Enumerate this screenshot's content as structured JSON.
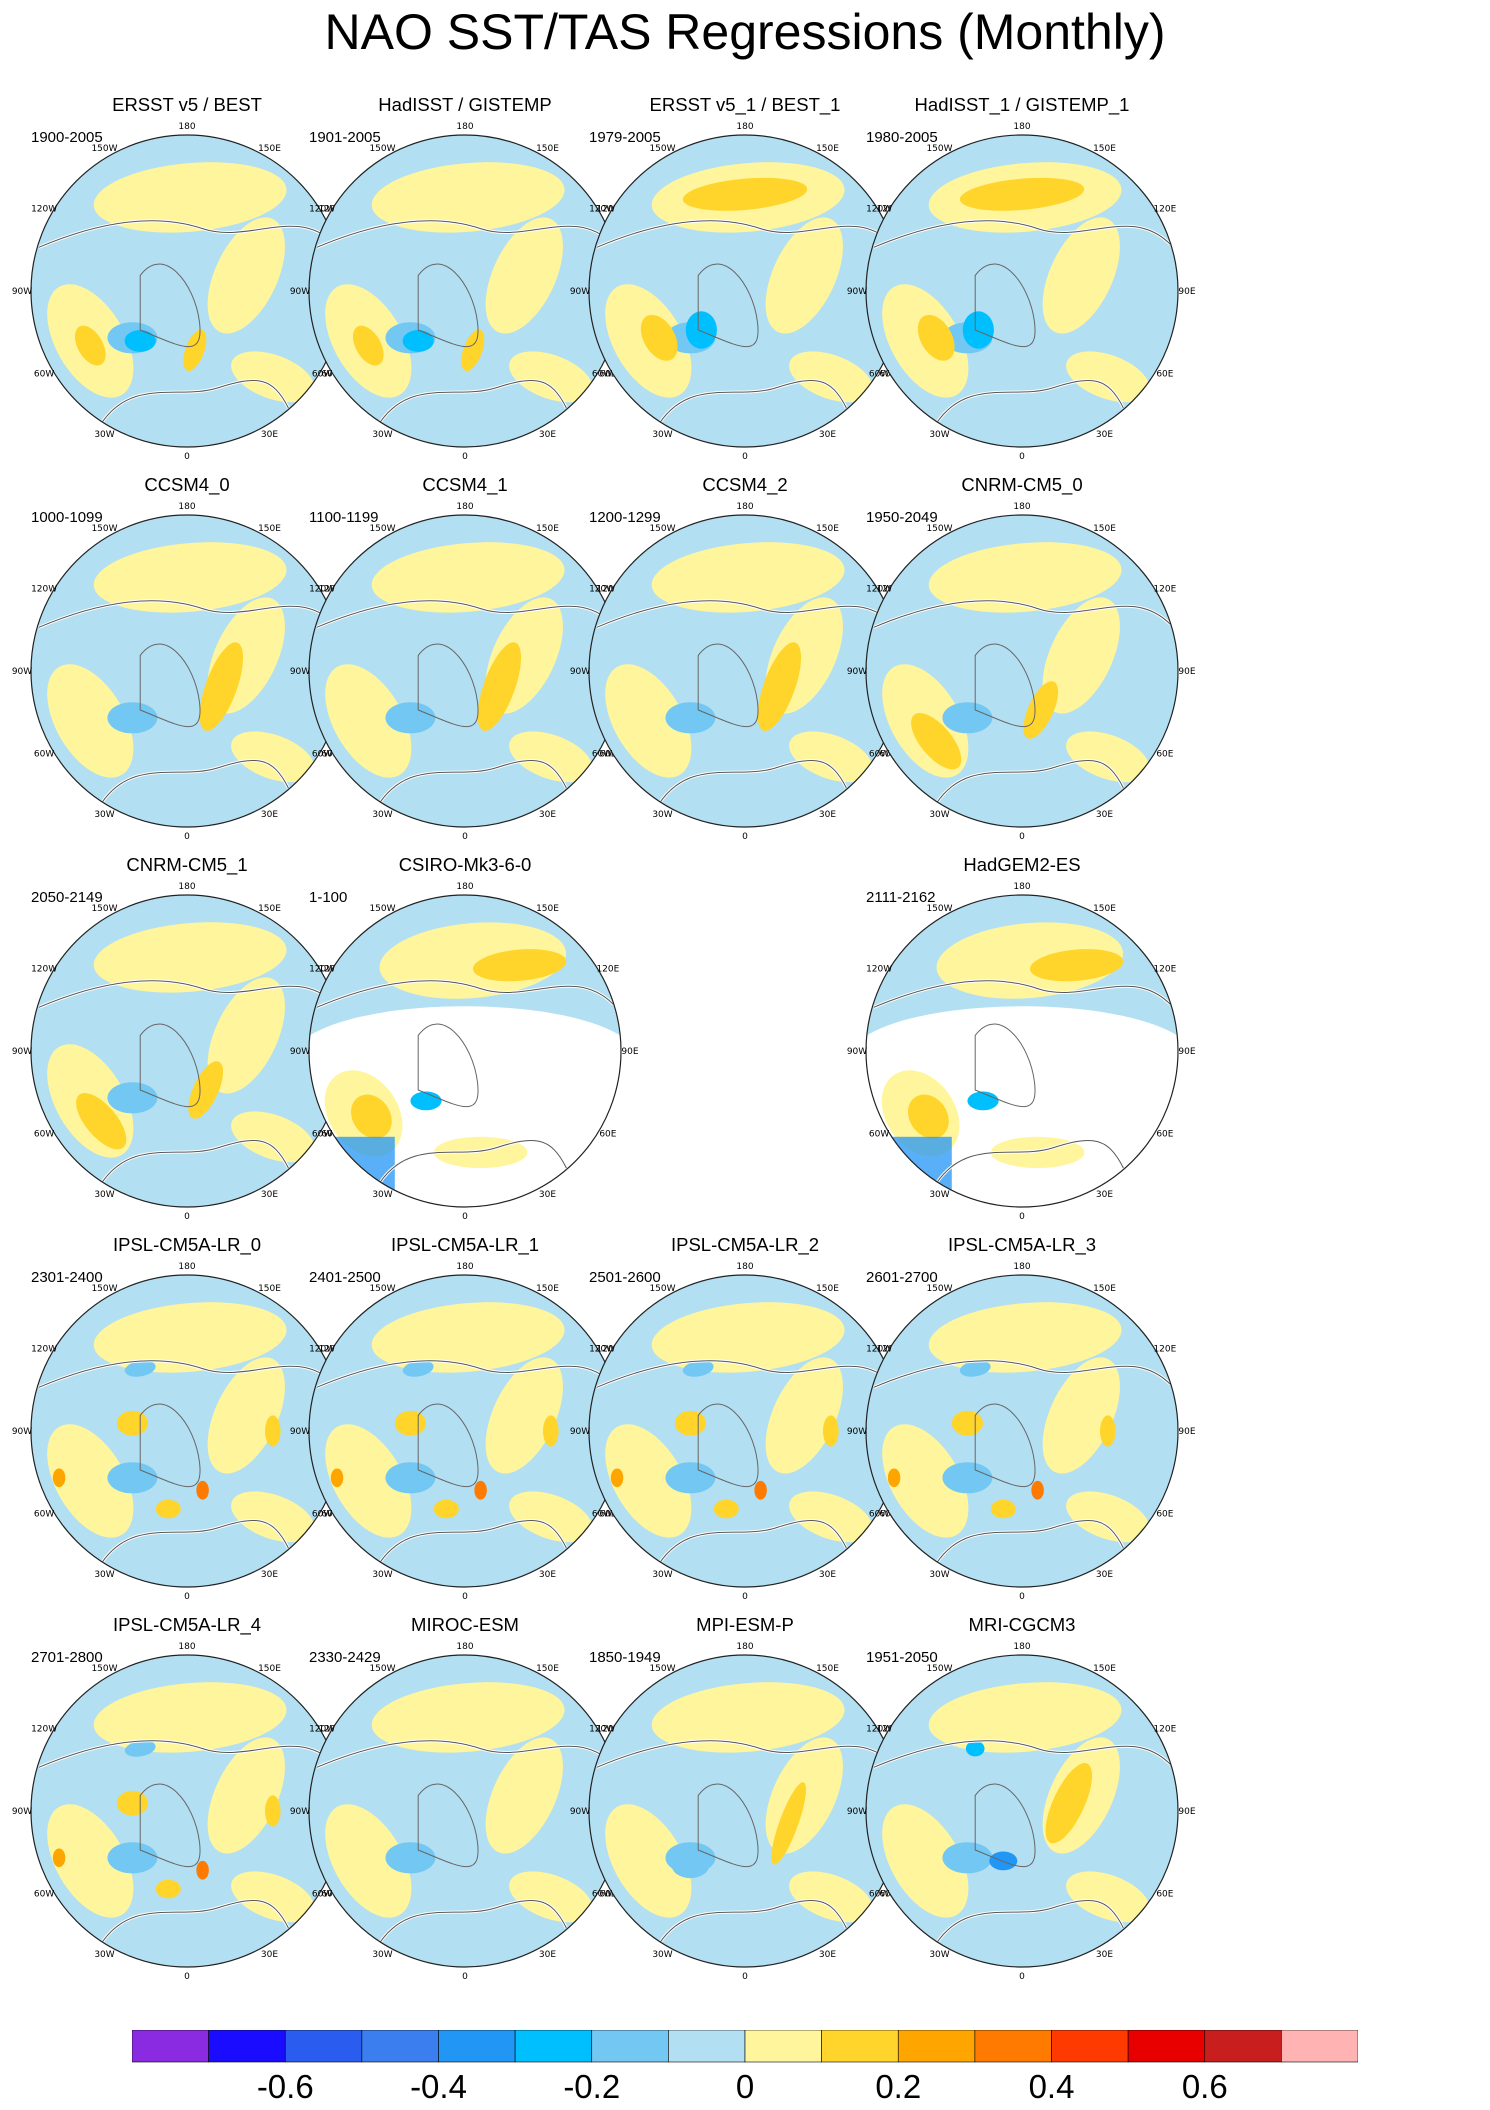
{
  "title": "NAO SST/TAS Regressions (Monthly)",
  "lon_labels": [
    "180",
    "150E",
    "120E",
    "90E",
    "60E",
    "30E",
    "0",
    "30W",
    "60W",
    "90W",
    "120W",
    "150W"
  ],
  "panels": [
    {
      "title": "ERSST v5 / BEST",
      "years": "1900-2005",
      "variant": "obs"
    },
    {
      "title": "HadISST / GISTEMP",
      "years": "1901-2005",
      "variant": "obs"
    },
    {
      "title": "ERSST v5_1 / BEST_1",
      "years": "1979-2005",
      "variant": "obs_strong"
    },
    {
      "title": "HadISST_1 / GISTEMP_1",
      "years": "1980-2005",
      "variant": "obs_strong"
    },
    {
      "title": "CCSM4_0",
      "years": "1000-1099",
      "variant": "ccsm"
    },
    {
      "title": "CCSM4_1",
      "years": "1100-1199",
      "variant": "ccsm"
    },
    {
      "title": "CCSM4_2",
      "years": "1200-1299",
      "variant": "ccsm"
    },
    {
      "title": "CNRM-CM5_0",
      "years": "1950-2049",
      "variant": "cnrm"
    },
    {
      "title": "CNRM-CM5_1",
      "years": "2050-2149",
      "variant": "cnrm"
    },
    {
      "title": "CSIRO-Mk3-6-0",
      "years": "1-100",
      "variant": "masked"
    },
    null,
    {
      "title": "HadGEM2-ES",
      "years": "2111-2162",
      "variant": "masked"
    },
    {
      "title": "IPSL-CM5A-LR_0",
      "years": "2301-2400",
      "variant": "ipsl"
    },
    {
      "title": "IPSL-CM5A-LR_1",
      "years": "2401-2500",
      "variant": "ipsl"
    },
    {
      "title": "IPSL-CM5A-LR_2",
      "years": "2501-2600",
      "variant": "ipsl"
    },
    {
      "title": "IPSL-CM5A-LR_3",
      "years": "2601-2700",
      "variant": "ipsl"
    },
    {
      "title": "IPSL-CM5A-LR_4",
      "years": "2701-2800",
      "variant": "ipsl"
    },
    {
      "title": "MIROC-ESM",
      "years": "2330-2429",
      "variant": "weak"
    },
    {
      "title": "MPI-ESM-P",
      "years": "1850-1949",
      "variant": "mpi"
    },
    {
      "title": "MRI-CGCM3",
      "years": "1951-2050",
      "variant": "mri"
    }
  ],
  "colorbar": {
    "colors": [
      "#8a2be2",
      "#1a0dff",
      "#2b5cf0",
      "#3a7ef0",
      "#2196f5",
      "#00bfff",
      "#72c8f2",
      "#b3dff2",
      "#fff59d",
      "#ffd52b",
      "#ffa500",
      "#ff7a00",
      "#ff3a00",
      "#e80000",
      "#c81e1e",
      "#ffb3b3"
    ],
    "labels": [
      {
        "text": "-0.6",
        "boundary": 2
      },
      {
        "text": "-0.4",
        "boundary": 4
      },
      {
        "text": "-0.2",
        "boundary": 6
      },
      {
        "text": "0",
        "boundary": 8
      },
      {
        "text": "0.2",
        "boundary": 10
      },
      {
        "text": "0.4",
        "boundary": 12
      },
      {
        "text": "0.6",
        "boundary": 14
      }
    ]
  }
}
